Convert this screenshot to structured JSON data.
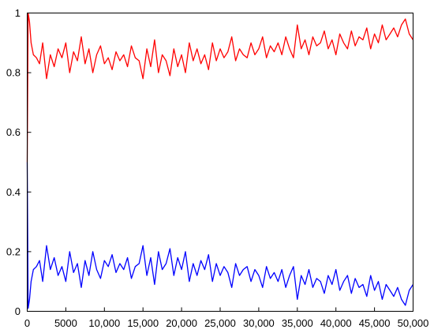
{
  "chart_data": {
    "type": "line",
    "title": "",
    "xlabel": "",
    "ylabel": "",
    "xlim": [
      0,
      50000
    ],
    "ylim": [
      0,
      1
    ],
    "grid": false,
    "legend": "none",
    "x_ticks": [
      {
        "value": 0,
        "label": "0"
      },
      {
        "value": 5000,
        "label": "5000"
      },
      {
        "value": 10000,
        "label": "10,000"
      },
      {
        "value": 15000,
        "label": "15,000"
      },
      {
        "value": 20000,
        "label": "20,000"
      },
      {
        "value": 25000,
        "label": "25,000"
      },
      {
        "value": 30000,
        "label": "30,000"
      },
      {
        "value": 35000,
        "label": "35,000"
      },
      {
        "value": 40000,
        "label": "40,000"
      },
      {
        "value": 45000,
        "label": "45,000"
      },
      {
        "value": 50000,
        "label": "50,000"
      }
    ],
    "y_ticks": [
      {
        "value": 0,
        "label": "0"
      },
      {
        "value": 0.2,
        "label": "0.2"
      },
      {
        "value": 0.4,
        "label": "0.4"
      },
      {
        "value": 0.6,
        "label": "0.6"
      },
      {
        "value": 0.8,
        "label": "0.8"
      },
      {
        "value": 1,
        "label": "1"
      }
    ],
    "series": [
      {
        "color": "#ff0000",
        "x": [
          0,
          120,
          300,
          500,
          800,
          1200,
          1600,
          2000,
          2500,
          3000,
          3500,
          4000,
          4500,
          5000,
          5500,
          6000,
          6500,
          7000,
          7500,
          8000,
          8500,
          9000,
          9500,
          10000,
          10500,
          11000,
          11500,
          12000,
          12500,
          13000,
          13500,
          14000,
          14500,
          15000,
          15500,
          16000,
          16500,
          17000,
          17500,
          18000,
          18500,
          19000,
          19500,
          20000,
          20500,
          21000,
          21500,
          22000,
          22500,
          23000,
          23500,
          24000,
          24500,
          25000,
          25500,
          26000,
          26500,
          27000,
          27500,
          28000,
          28500,
          29000,
          29500,
          30000,
          30500,
          31000,
          31500,
          32000,
          32500,
          33000,
          33500,
          34000,
          34500,
          35000,
          35500,
          36000,
          36500,
          37000,
          37500,
          38000,
          38500,
          39000,
          39500,
          40000,
          40500,
          41000,
          41500,
          42000,
          42500,
          43000,
          43500,
          44000,
          44500,
          45000,
          45500,
          46000,
          46500,
          47000,
          47500,
          48000,
          48500,
          49000,
          49500,
          50000
        ],
        "y": [
          0.5,
          1.0,
          0.97,
          0.9,
          0.86,
          0.85,
          0.83,
          0.9,
          0.78,
          0.86,
          0.82,
          0.88,
          0.85,
          0.9,
          0.8,
          0.87,
          0.84,
          0.92,
          0.83,
          0.88,
          0.8,
          0.86,
          0.89,
          0.83,
          0.85,
          0.81,
          0.87,
          0.84,
          0.86,
          0.82,
          0.89,
          0.85,
          0.84,
          0.78,
          0.88,
          0.82,
          0.91,
          0.8,
          0.86,
          0.84,
          0.79,
          0.88,
          0.82,
          0.86,
          0.8,
          0.9,
          0.84,
          0.88,
          0.83,
          0.86,
          0.81,
          0.9,
          0.84,
          0.88,
          0.85,
          0.87,
          0.92,
          0.84,
          0.88,
          0.86,
          0.85,
          0.9,
          0.86,
          0.88,
          0.92,
          0.85,
          0.89,
          0.87,
          0.9,
          0.86,
          0.92,
          0.88,
          0.85,
          0.96,
          0.88,
          0.91,
          0.86,
          0.92,
          0.89,
          0.9,
          0.94,
          0.88,
          0.91,
          0.86,
          0.93,
          0.9,
          0.88,
          0.94,
          0.89,
          0.92,
          0.91,
          0.95,
          0.88,
          0.93,
          0.9,
          0.96,
          0.91,
          0.93,
          0.95,
          0.92,
          0.96,
          0.98,
          0.93,
          0.91
        ]
      },
      {
        "color": "#0000ff",
        "x": [
          0,
          120,
          300,
          500,
          800,
          1200,
          1600,
          2000,
          2500,
          3000,
          3500,
          4000,
          4500,
          5000,
          5500,
          6000,
          6500,
          7000,
          7500,
          8000,
          8500,
          9000,
          9500,
          10000,
          10500,
          11000,
          11500,
          12000,
          12500,
          13000,
          13500,
          14000,
          14500,
          15000,
          15500,
          16000,
          16500,
          17000,
          17500,
          18000,
          18500,
          19000,
          19500,
          20000,
          20500,
          21000,
          21500,
          22000,
          22500,
          23000,
          23500,
          24000,
          24500,
          25000,
          25500,
          26000,
          26500,
          27000,
          27500,
          28000,
          28500,
          29000,
          29500,
          30000,
          30500,
          31000,
          31500,
          32000,
          32500,
          33000,
          33500,
          34000,
          34500,
          35000,
          35500,
          36000,
          36500,
          37000,
          37500,
          38000,
          38500,
          39000,
          39500,
          40000,
          40500,
          41000,
          41500,
          42000,
          42500,
          43000,
          43500,
          44000,
          44500,
          45000,
          45500,
          46000,
          46500,
          47000,
          47500,
          48000,
          48500,
          49000,
          49500,
          50000
        ],
        "y": [
          0.5,
          0.01,
          0.04,
          0.1,
          0.14,
          0.15,
          0.17,
          0.1,
          0.22,
          0.14,
          0.18,
          0.12,
          0.15,
          0.1,
          0.2,
          0.13,
          0.16,
          0.08,
          0.17,
          0.12,
          0.2,
          0.14,
          0.11,
          0.17,
          0.15,
          0.19,
          0.13,
          0.16,
          0.14,
          0.18,
          0.11,
          0.15,
          0.16,
          0.22,
          0.12,
          0.18,
          0.09,
          0.2,
          0.14,
          0.16,
          0.21,
          0.12,
          0.18,
          0.14,
          0.2,
          0.1,
          0.16,
          0.12,
          0.17,
          0.14,
          0.19,
          0.1,
          0.16,
          0.12,
          0.15,
          0.13,
          0.08,
          0.16,
          0.12,
          0.14,
          0.15,
          0.1,
          0.14,
          0.12,
          0.08,
          0.15,
          0.11,
          0.13,
          0.1,
          0.14,
          0.08,
          0.12,
          0.15,
          0.04,
          0.12,
          0.09,
          0.14,
          0.08,
          0.11,
          0.1,
          0.06,
          0.12,
          0.09,
          0.14,
          0.07,
          0.1,
          0.12,
          0.06,
          0.11,
          0.08,
          0.09,
          0.05,
          0.12,
          0.07,
          0.1,
          0.04,
          0.09,
          0.07,
          0.05,
          0.08,
          0.04,
          0.02,
          0.07,
          0.09
        ]
      }
    ]
  }
}
